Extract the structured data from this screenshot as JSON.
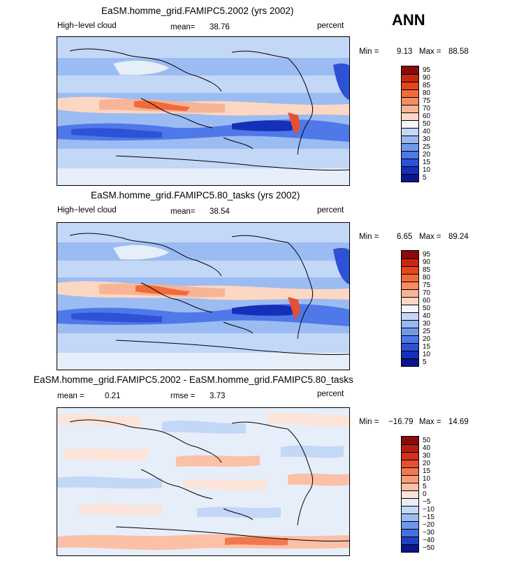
{
  "season": "ANN",
  "panels": [
    {
      "title": "EaSM.homme_grid.FAMIPC5.2002 (yrs 2002)",
      "variable": "High−level cloud",
      "mean_label": "mean=",
      "mean_value": "38.76",
      "units": "percent",
      "min_label": "Min =",
      "min_value": "9.13",
      "max_label": "Max =",
      "max_value": "88.58",
      "levels": [
        "95",
        "90",
        "85",
        "80",
        "75",
        "70",
        "60",
        "50",
        "40",
        "30",
        "25",
        "20",
        "15",
        "10",
        "5"
      ],
      "colors": [
        "#8b0a0a",
        "#c8280f",
        "#e6461e",
        "#f06a3c",
        "#f58c64",
        "#f8b496",
        "#fcd7c3",
        "#f3f5fa",
        "#c3d7f7",
        "#97b8f0",
        "#7398ec",
        "#4f78e8",
        "#2d52d6",
        "#1530b8",
        "#0a1590"
      ]
    },
    {
      "title": "EaSM.homme_grid.FAMIPC5.80_tasks (yrs 2002)",
      "variable": "High−level cloud",
      "mean_label": "mean=",
      "mean_value": "38.54",
      "units": "percent",
      "min_label": "Min =",
      "min_value": "6.65",
      "max_label": "Max =",
      "max_value": "89.24",
      "levels": [
        "95",
        "90",
        "85",
        "80",
        "75",
        "70",
        "60",
        "50",
        "40",
        "30",
        "25",
        "20",
        "15",
        "10",
        "5"
      ],
      "colors": [
        "#8b0a0a",
        "#c8280f",
        "#e6461e",
        "#f06a3c",
        "#f58c64",
        "#f8b496",
        "#fcd7c3",
        "#f3f5fa",
        "#c3d7f7",
        "#97b8f0",
        "#7398ec",
        "#4f78e8",
        "#2d52d6",
        "#1530b8",
        "#0a1590"
      ]
    },
    {
      "title": "EaSM.homme_grid.FAMIPC5.2002 - EaSM.homme_grid.FAMIPC5.80_tasks",
      "mean_label": "mean =",
      "mean_value": "0.21",
      "rmse_label": "rmse =",
      "rmse_value": "3.73",
      "units": "percent",
      "min_label": "Min =",
      "min_value": "−16.79",
      "max_label": "Max =",
      "max_value": "14.69",
      "levels": [
        "50",
        "40",
        "30",
        "20",
        "15",
        "10",
        "5",
        "0",
        "−5",
        "−10",
        "−15",
        "−20",
        "−30",
        "−40",
        "−50"
      ],
      "colors": [
        "#8b0a0a",
        "#b41e12",
        "#d2321a",
        "#e65032",
        "#f0784f",
        "#f89c78",
        "#fcc0a6",
        "#fce4d8",
        "#e6eefa",
        "#c3d7f7",
        "#9bbcf2",
        "#6e96ea",
        "#4670e2",
        "#2241c2",
        "#0a1590"
      ]
    }
  ]
}
